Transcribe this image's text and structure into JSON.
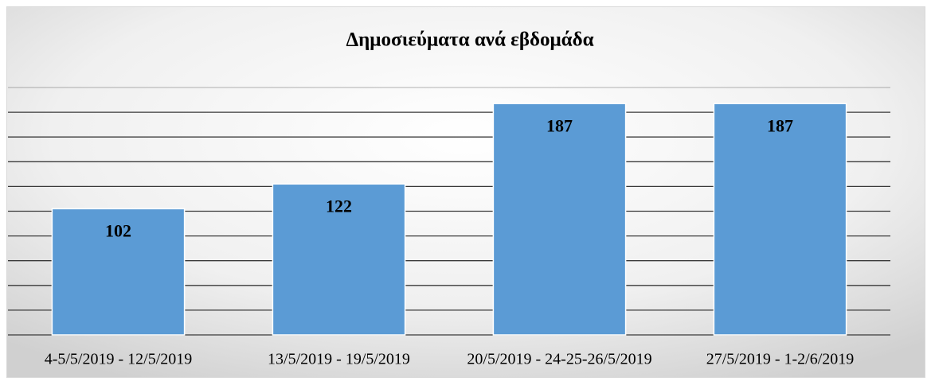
{
  "chart_data": {
    "type": "bar",
    "title": "Δημοσιεύματα ανά εβδομάδα",
    "categories": [
      "4-5/5/2019 - 12/5/2019",
      "13/5/2019 - 19/5/2019",
      "20/5/2019 - 24-25-26/5/2019",
      "27/5/2019 - 1-2/6/2019"
    ],
    "values": [
      102,
      122,
      187,
      187
    ],
    "color": "#5b9bd5",
    "ylim": [
      0,
      200
    ],
    "yticks": [
      0,
      20,
      40,
      60,
      80,
      100,
      120,
      140,
      160,
      180,
      200
    ],
    "grid": true
  }
}
